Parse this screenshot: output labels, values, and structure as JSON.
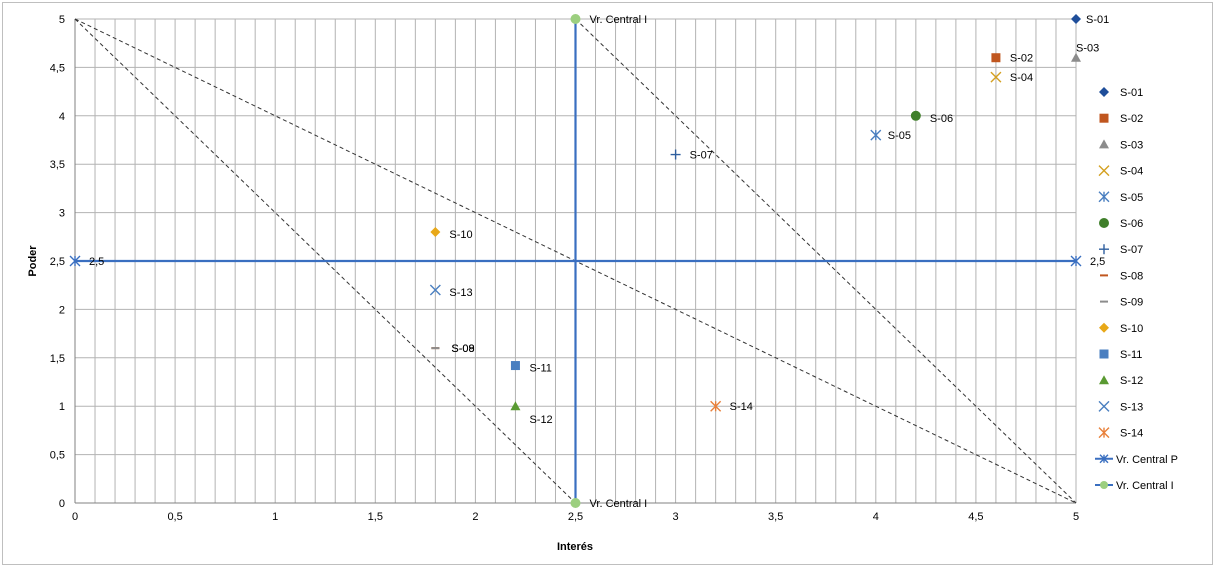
{
  "chart_data": {
    "type": "scatter",
    "title": "",
    "xlabel": "Interés",
    "ylabel": "Poder",
    "xlim": [
      0,
      5
    ],
    "ylim": [
      0,
      5
    ],
    "x_ticks": [
      "0",
      "0,5",
      "1",
      "1,5",
      "2",
      "2,5",
      "3",
      "3,5",
      "4",
      "4,5",
      "5"
    ],
    "y_ticks": [
      "0",
      "0,5",
      "1",
      "1,5",
      "2",
      "2,5",
      "3",
      "3,5",
      "4",
      "4,5",
      "5"
    ],
    "grid": true,
    "legend_position": "right",
    "series": [
      {
        "name": "S-01",
        "marker": "diamond",
        "color": "#1f4e9a",
        "x": 5.0,
        "y": 5.0,
        "label": "S-01"
      },
      {
        "name": "S-02",
        "marker": "square",
        "color": "#c0561f",
        "x": 4.6,
        "y": 4.6,
        "label": "S-02"
      },
      {
        "name": "S-03",
        "marker": "triangle",
        "color": "#8c8c8c",
        "x": 5.0,
        "y": 4.6,
        "label": "S-03"
      },
      {
        "name": "S-04",
        "marker": "x",
        "color": "#d4a020",
        "x": 4.6,
        "y": 4.4,
        "label": "S-04"
      },
      {
        "name": "S-05",
        "marker": "star",
        "color": "#4a7fc0",
        "x": 4.0,
        "y": 3.8,
        "label": "S-05"
      },
      {
        "name": "S-06",
        "marker": "circle",
        "color": "#3f7f2a",
        "x": 4.2,
        "y": 4.0,
        "label": "S-06"
      },
      {
        "name": "S-07",
        "marker": "plus",
        "color": "#2f5f9f",
        "x": 3.0,
        "y": 3.6,
        "label": "S-07"
      },
      {
        "name": "S-08",
        "marker": "dash",
        "color": "#c0561f",
        "x": 1.8,
        "y": 1.6,
        "label": "S-08"
      },
      {
        "name": "S-09",
        "marker": "dash",
        "color": "#8c8c8c",
        "x": 1.8,
        "y": 1.6,
        "label": "S-09"
      },
      {
        "name": "S-10",
        "marker": "diamond",
        "color": "#e8a818",
        "x": 1.8,
        "y": 2.8,
        "label": "S-10"
      },
      {
        "name": "S-11",
        "marker": "square",
        "color": "#4a7fc0",
        "x": 2.2,
        "y": 1.42,
        "label": "S-11"
      },
      {
        "name": "S-12",
        "marker": "triangle",
        "color": "#5a9a32",
        "x": 2.2,
        "y": 1.0,
        "label": "S-12"
      },
      {
        "name": "S-13",
        "marker": "x",
        "color": "#4a7fc0",
        "x": 1.8,
        "y": 2.2,
        "label": "S-13"
      },
      {
        "name": "S-14",
        "marker": "star",
        "color": "#e8803a",
        "x": 3.2,
        "y": 1.0,
        "label": "S-14"
      }
    ],
    "line_series": [
      {
        "name": "Vr. Central P",
        "marker": "star",
        "color": "#3a6fc0",
        "x": [
          0,
          5
        ],
        "y": [
          2.5,
          2.5
        ],
        "point_labels": [
          "2,5",
          "2,5"
        ]
      },
      {
        "name": "Vr. Central I",
        "marker": "circle",
        "color": "#9ccf7f",
        "line_color": "#3a6fc0",
        "x": [
          2.5,
          2.5
        ],
        "y": [
          0,
          5
        ],
        "point_labels": [
          "Vr. Central I",
          "Vr. Central I"
        ]
      }
    ],
    "dashed_lines": [
      {
        "x": [
          0,
          2.5
        ],
        "y": [
          5,
          0
        ]
      },
      {
        "x": [
          0,
          5
        ],
        "y": [
          5,
          0
        ]
      },
      {
        "x": [
          2.5,
          5
        ],
        "y": [
          5,
          0
        ]
      }
    ]
  }
}
